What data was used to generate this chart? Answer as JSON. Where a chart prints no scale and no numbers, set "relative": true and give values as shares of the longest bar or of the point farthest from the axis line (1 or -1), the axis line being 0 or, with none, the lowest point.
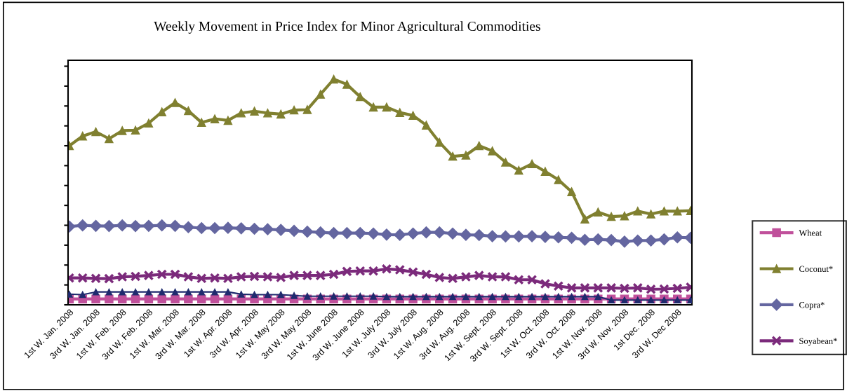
{
  "chart_data": {
    "type": "line",
    "title": "Weekly Movement in Price Index for Minor Agricultural Commodities",
    "relative": true,
    "categories": [
      "1st W. Jan. 2008",
      null,
      "3rd W. Jan. 2008",
      null,
      "1st W. Feb. 2008",
      null,
      "3rd W. Feb. 2008",
      null,
      "1st W. Mar. 2008",
      null,
      "3rd W. Mar. 2008",
      null,
      "1st W. Apr. 2008",
      null,
      "3rd W. Apr. 2008",
      null,
      "1st W. May 2008",
      null,
      "3rd W. May 2008",
      null,
      "1st W. June 2008",
      null,
      "3rd W. June 2008",
      null,
      "1st W. July 2008",
      null,
      "3rd W. July 2008",
      null,
      "1st W. Aug. 2008",
      null,
      "3rd W. Aug. 2008",
      null,
      "1st W. Sept. 2008",
      null,
      "3rd W. Sept. 2008",
      null,
      "1st W. Oct. 2008",
      null,
      "3rd W. Oct. 2008",
      null,
      "1st W. Nov. 2008",
      null,
      "3rd W. Nov. 2008",
      null,
      "1st Dec. 2008",
      null,
      "3rd W. Dec 2008",
      null
    ],
    "series": [
      {
        "color": "#1f2a6e",
        "marker": "triangle",
        "values": [
          0.047,
          0.045,
          0.057,
          0.057,
          0.057,
          0.057,
          0.057,
          0.057,
          0.057,
          0.057,
          0.057,
          0.057,
          0.057,
          0.047,
          0.045,
          0.045,
          0.045,
          0.041,
          0.038,
          0.038,
          0.038,
          0.038,
          0.038,
          0.038,
          0.036,
          0.036,
          0.036,
          0.036,
          0.036,
          0.036,
          0.036,
          0.036,
          0.036,
          0.036,
          0.036,
          0.036,
          0.036,
          0.036,
          0.036,
          0.036,
          0.036,
          0.021,
          0.021,
          0.021,
          0.021,
          0.021,
          0.021,
          0.021
        ]
      },
      {
        "name": "Wheat",
        "color": "#c0509b",
        "marker": "square",
        "values": [
          0.026,
          0.026,
          0.026,
          0.026,
          0.026,
          0.026,
          0.026,
          0.026,
          0.026,
          0.026,
          0.026,
          0.026,
          0.026,
          0.026,
          0.026,
          0.026,
          0.026,
          0.026,
          0.026,
          0.026,
          0.026,
          0.026,
          0.026,
          0.026,
          0.026,
          0.026,
          0.026,
          0.026,
          0.026,
          0.026,
          0.026,
          0.026,
          0.026,
          0.026,
          0.026,
          0.026,
          0.026,
          0.026,
          0.026,
          0.026,
          0.026,
          0.026,
          0.026,
          0.026,
          0.026,
          0.026,
          0.026,
          0.026
        ]
      },
      {
        "name": "Coconut*",
        "color": "#808030",
        "marker": "triangle",
        "values": [
          0.705,
          0.748,
          0.767,
          0.736,
          0.772,
          0.774,
          0.805,
          0.855,
          0.896,
          0.86,
          0.808,
          0.824,
          0.817,
          0.85,
          0.858,
          0.85,
          0.845,
          0.863,
          0.865,
          0.933,
          1,
          0.977,
          0.922,
          0.876,
          0.876,
          0.852,
          0.839,
          0.796,
          0.72,
          0.658,
          0.663,
          0.705,
          0.682,
          0.632,
          0.596,
          0.625,
          0.591,
          0.554,
          0.501,
          0.38,
          0.411,
          0.391,
          0.394,
          0.415,
          0.402,
          0.415,
          0.415,
          0.417
        ]
      },
      {
        "name": "Copra*",
        "color": "#6466a0",
        "marker": "diamond",
        "values": [
          0.347,
          0.352,
          0.35,
          0.349,
          0.352,
          0.349,
          0.35,
          0.352,
          0.35,
          0.344,
          0.34,
          0.34,
          0.341,
          0.339,
          0.337,
          0.335,
          0.332,
          0.328,
          0.324,
          0.321,
          0.318,
          0.318,
          0.318,
          0.316,
          0.311,
          0.31,
          0.316,
          0.321,
          0.321,
          0.316,
          0.31,
          0.309,
          0.304,
          0.303,
          0.303,
          0.304,
          0.301,
          0.299,
          0.297,
          0.288,
          0.29,
          0.287,
          0.28,
          0.285,
          0.285,
          0.29,
          0.299,
          0.297
        ]
      },
      {
        "name": "Soyabean*",
        "color": "#7b2a7b",
        "marker": "cross",
        "values": [
          0.119,
          0.119,
          0.117,
          0.116,
          0.124,
          0.126,
          0.13,
          0.135,
          0.135,
          0.124,
          0.117,
          0.119,
          0.117,
          0.124,
          0.126,
          0.124,
          0.121,
          0.13,
          0.13,
          0.13,
          0.135,
          0.148,
          0.15,
          0.15,
          0.159,
          0.155,
          0.145,
          0.135,
          0.121,
          0.117,
          0.124,
          0.13,
          0.124,
          0.124,
          0.111,
          0.111,
          0.093,
          0.083,
          0.075,
          0.075,
          0.075,
          0.075,
          0.073,
          0.075,
          0.069,
          0.07,
          0.073,
          0.078
        ]
      }
    ],
    "legend": "right",
    "grid": false
  }
}
